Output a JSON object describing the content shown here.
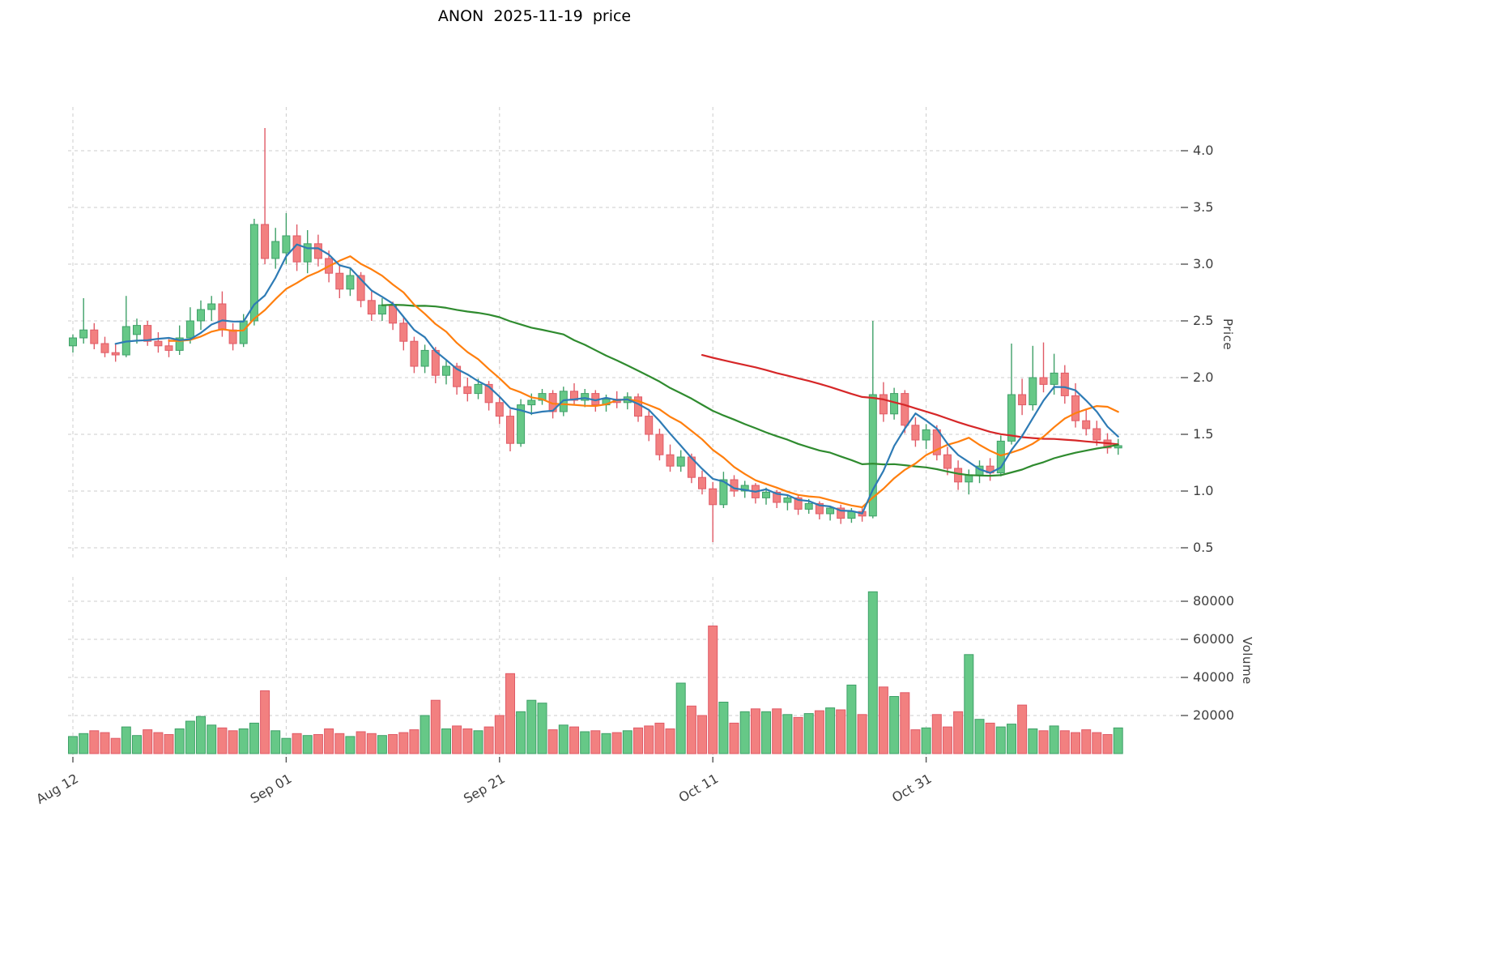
{
  "title": "ANON  2025-11-19  price",
  "colors": {
    "up": "#66c887",
    "up_edge": "#3fa068",
    "down": "#f28080",
    "down_edge": "#e05a66",
    "grid": "#cccccc",
    "tick_text": "#3f3f3f",
    "tick_mark": "#555555",
    "background": "#ffffff",
    "ma_blue": "#2e7bb5",
    "ma_orange": "#ff7f0e",
    "ma_green": "#2f8b2f",
    "ma_red": "#d62728"
  },
  "chart_data": {
    "type": "candlestick_with_volume",
    "symbol": "ANON",
    "as_of_date": "2025-11-19",
    "grid": true,
    "legend": "none",
    "price_axis": {
      "label": "Price",
      "side": "right",
      "ticks": [
        "0.5",
        "1.0",
        "1.5",
        "2.0",
        "2.5",
        "3.0",
        "3.5",
        "4.0"
      ],
      "ylim": [
        0.4,
        4.4
      ]
    },
    "volume_axis": {
      "label": "Volume",
      "side": "right",
      "ticks": [
        "20000",
        "40000",
        "60000",
        "80000"
      ],
      "ylim": [
        0,
        92000
      ]
    },
    "x_axis": {
      "ticks": [
        {
          "label": "Aug 12",
          "index": 0
        },
        {
          "label": "Sep 01",
          "index": 20
        },
        {
          "label": "Sep 21",
          "index": 40
        },
        {
          "label": "Oct 11",
          "index": 60
        },
        {
          "label": "Oct 31",
          "index": 80
        }
      ],
      "bar_count": 99
    },
    "moving_averages": [
      {
        "name": "ma5",
        "window": 5,
        "color": "#2e7bb5"
      },
      {
        "name": "ma10",
        "window": 10,
        "color": "#ff7f0e"
      },
      {
        "name": "ma30",
        "window": 30,
        "color": "#2f8b2f"
      },
      {
        "name": "ma60",
        "window": 60,
        "color": "#d62728"
      }
    ],
    "ohlc": [
      [
        2.28,
        2.38,
        2.22,
        2.35
      ],
      [
        2.35,
        2.7,
        2.3,
        2.42
      ],
      [
        2.42,
        2.48,
        2.25,
        2.3
      ],
      [
        2.3,
        2.36,
        2.18,
        2.22
      ],
      [
        2.22,
        2.3,
        2.14,
        2.2
      ],
      [
        2.2,
        2.72,
        2.18,
        2.45
      ],
      [
        2.38,
        2.52,
        2.3,
        2.46
      ],
      [
        2.46,
        2.5,
        2.28,
        2.32
      ],
      [
        2.32,
        2.4,
        2.22,
        2.28
      ],
      [
        2.28,
        2.34,
        2.18,
        2.24
      ],
      [
        2.24,
        2.46,
        2.2,
        2.35
      ],
      [
        2.35,
        2.62,
        2.3,
        2.5
      ],
      [
        2.5,
        2.68,
        2.42,
        2.6
      ],
      [
        2.6,
        2.72,
        2.5,
        2.65
      ],
      [
        2.65,
        2.76,
        2.36,
        2.42
      ],
      [
        2.42,
        2.48,
        2.24,
        2.3
      ],
      [
        2.3,
        2.56,
        2.27,
        2.5
      ],
      [
        2.5,
        3.4,
        2.46,
        3.35
      ],
      [
        3.35,
        4.2,
        3.0,
        3.05
      ],
      [
        3.05,
        3.32,
        2.96,
        3.2
      ],
      [
        3.1,
        3.45,
        3.0,
        3.25
      ],
      [
        3.25,
        3.35,
        2.94,
        3.02
      ],
      [
        3.02,
        3.3,
        2.92,
        3.18
      ],
      [
        3.18,
        3.26,
        2.98,
        3.05
      ],
      [
        3.05,
        3.12,
        2.84,
        2.92
      ],
      [
        2.92,
        3.0,
        2.7,
        2.78
      ],
      [
        2.78,
        2.96,
        2.72,
        2.9
      ],
      [
        2.9,
        2.93,
        2.62,
        2.68
      ],
      [
        2.68,
        2.76,
        2.5,
        2.56
      ],
      [
        2.56,
        2.7,
        2.5,
        2.64
      ],
      [
        2.64,
        2.67,
        2.42,
        2.48
      ],
      [
        2.48,
        2.53,
        2.24,
        2.32
      ],
      [
        2.32,
        2.36,
        2.04,
        2.1
      ],
      [
        2.1,
        2.29,
        2.04,
        2.24
      ],
      [
        2.24,
        2.27,
        1.95,
        2.02
      ],
      [
        2.02,
        2.16,
        1.94,
        2.1
      ],
      [
        2.1,
        2.13,
        1.85,
        1.92
      ],
      [
        1.92,
        2.0,
        1.79,
        1.86
      ],
      [
        1.86,
        1.99,
        1.81,
        1.94
      ],
      [
        1.94,
        1.97,
        1.71,
        1.78
      ],
      [
        1.78,
        1.83,
        1.59,
        1.66
      ],
      [
        1.66,
        1.72,
        1.35,
        1.42
      ],
      [
        1.42,
        1.81,
        1.39,
        1.76
      ],
      [
        1.76,
        1.86,
        1.67,
        1.8
      ],
      [
        1.8,
        1.9,
        1.76,
        1.86
      ],
      [
        1.86,
        1.89,
        1.64,
        1.7
      ],
      [
        1.7,
        1.92,
        1.66,
        1.88
      ],
      [
        1.88,
        1.95,
        1.76,
        1.8
      ],
      [
        1.8,
        1.9,
        1.74,
        1.86
      ],
      [
        1.86,
        1.89,
        1.7,
        1.76
      ],
      [
        1.76,
        1.85,
        1.7,
        1.81
      ],
      [
        1.81,
        1.88,
        1.73,
        1.78
      ],
      [
        1.78,
        1.87,
        1.72,
        1.83
      ],
      [
        1.83,
        1.86,
        1.61,
        1.66
      ],
      [
        1.66,
        1.71,
        1.44,
        1.5
      ],
      [
        1.5,
        1.55,
        1.27,
        1.32
      ],
      [
        1.32,
        1.41,
        1.17,
        1.22
      ],
      [
        1.22,
        1.36,
        1.17,
        1.3
      ],
      [
        1.3,
        1.33,
        1.07,
        1.12
      ],
      [
        1.12,
        1.18,
        0.97,
        1.02
      ],
      [
        1.02,
        1.08,
        0.55,
        0.88
      ],
      [
        0.88,
        1.17,
        0.85,
        1.1
      ],
      [
        1.1,
        1.14,
        0.95,
        1.0
      ],
      [
        1.0,
        1.09,
        0.94,
        1.05
      ],
      [
        1.05,
        1.07,
        0.89,
        0.94
      ],
      [
        0.94,
        1.03,
        0.88,
        0.99
      ],
      [
        0.99,
        1.01,
        0.85,
        0.9
      ],
      [
        0.9,
        0.97,
        0.83,
        0.94
      ],
      [
        0.94,
        0.96,
        0.79,
        0.84
      ],
      [
        0.84,
        0.93,
        0.8,
        0.89
      ],
      [
        0.89,
        0.91,
        0.75,
        0.8
      ],
      [
        0.8,
        0.87,
        0.74,
        0.85
      ],
      [
        0.85,
        0.88,
        0.71,
        0.76
      ],
      [
        0.76,
        0.85,
        0.72,
        0.82
      ],
      [
        0.82,
        0.86,
        0.73,
        0.78
      ],
      [
        0.78,
        2.5,
        0.76,
        1.85
      ],
      [
        1.85,
        1.96,
        1.61,
        1.68
      ],
      [
        1.68,
        1.91,
        1.63,
        1.86
      ],
      [
        1.86,
        1.89,
        1.51,
        1.58
      ],
      [
        1.58,
        1.65,
        1.39,
        1.45
      ],
      [
        1.45,
        1.59,
        1.37,
        1.54
      ],
      [
        1.54,
        1.58,
        1.27,
        1.32
      ],
      [
        1.32,
        1.39,
        1.14,
        1.2
      ],
      [
        1.2,
        1.27,
        1.01,
        1.08
      ],
      [
        1.08,
        1.19,
        0.97,
        1.14
      ],
      [
        1.14,
        1.27,
        1.07,
        1.22
      ],
      [
        1.22,
        1.29,
        1.09,
        1.16
      ],
      [
        1.16,
        1.49,
        1.13,
        1.44
      ],
      [
        1.44,
        2.3,
        1.41,
        1.85
      ],
      [
        1.85,
        1.99,
        1.67,
        1.76
      ],
      [
        1.76,
        2.28,
        1.71,
        2.0
      ],
      [
        2.0,
        2.31,
        1.87,
        1.94
      ],
      [
        1.94,
        2.21,
        1.85,
        2.04
      ],
      [
        2.04,
        2.11,
        1.77,
        1.84
      ],
      [
        1.84,
        1.95,
        1.56,
        1.62
      ],
      [
        1.62,
        1.72,
        1.49,
        1.55
      ],
      [
        1.55,
        1.62,
        1.4,
        1.45
      ],
      [
        1.45,
        1.51,
        1.33,
        1.38
      ],
      [
        1.38,
        1.46,
        1.32,
        1.4
      ]
    ],
    "volume": [
      9000,
      10500,
      12000,
      11000,
      8000,
      14000,
      9500,
      12500,
      11000,
      10000,
      13000,
      17000,
      19500,
      15000,
      13500,
      12000,
      13000,
      16000,
      33000,
      12000,
      8000,
      10500,
      9500,
      10000,
      13000,
      10500,
      9000,
      11500,
      10500,
      9500,
      10000,
      11000,
      12500,
      20000,
      28000,
      13000,
      14500,
      13000,
      12000,
      14000,
      20000,
      42000,
      22000,
      28000,
      26500,
      12500,
      15000,
      14000,
      11500,
      12000,
      10500,
      11000,
      12000,
      13500,
      14500,
      16000,
      13000,
      37000,
      25000,
      20000,
      67000,
      27000,
      16000,
      22000,
      23500,
      22000,
      23500,
      20500,
      19000,
      21000,
      22500,
      24000,
      23000,
      36000,
      20500,
      85000,
      35000,
      30000,
      32000,
      12500,
      13500,
      20500,
      14000,
      22000,
      52000,
      18000,
      16000,
      14000,
      15500,
      25500,
      13000,
      12000,
      14500,
      12000,
      11000,
      12500,
      11000,
      10000,
      13500
    ]
  }
}
